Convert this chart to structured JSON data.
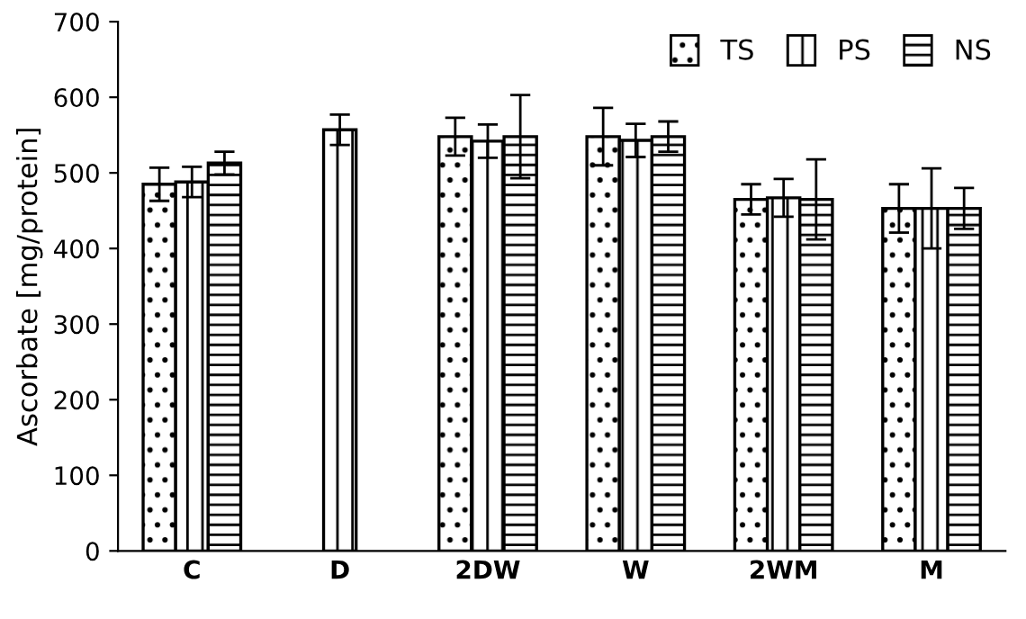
{
  "chart_data": {
    "type": "bar",
    "ylabel": "Ascorbate [mg/protein]",
    "categories": [
      "C",
      "D",
      "2DW",
      "W",
      "2WM",
      "M"
    ],
    "series": [
      {
        "name": "TS",
        "color": "#000000",
        "values": [
          485,
          null,
          548,
          548,
          465,
          453
        ],
        "errors": [
          22,
          null,
          25,
          38,
          20,
          32
        ]
      },
      {
        "name": "PS",
        "color": "#000000",
        "values": [
          488,
          557,
          542,
          543,
          467,
          453
        ],
        "errors": [
          20,
          20,
          22,
          22,
          25,
          53
        ]
      },
      {
        "name": "NS",
        "color": "#000000",
        "values": [
          513,
          null,
          548,
          548,
          465,
          453
        ],
        "errors": [
          15,
          null,
          55,
          20,
          53,
          27
        ]
      }
    ],
    "ylim": [
      0,
      700
    ],
    "yticks": [
      0,
      100,
      200,
      300,
      400,
      500,
      600,
      700
    ],
    "grid": false,
    "legend": "top right"
  }
}
